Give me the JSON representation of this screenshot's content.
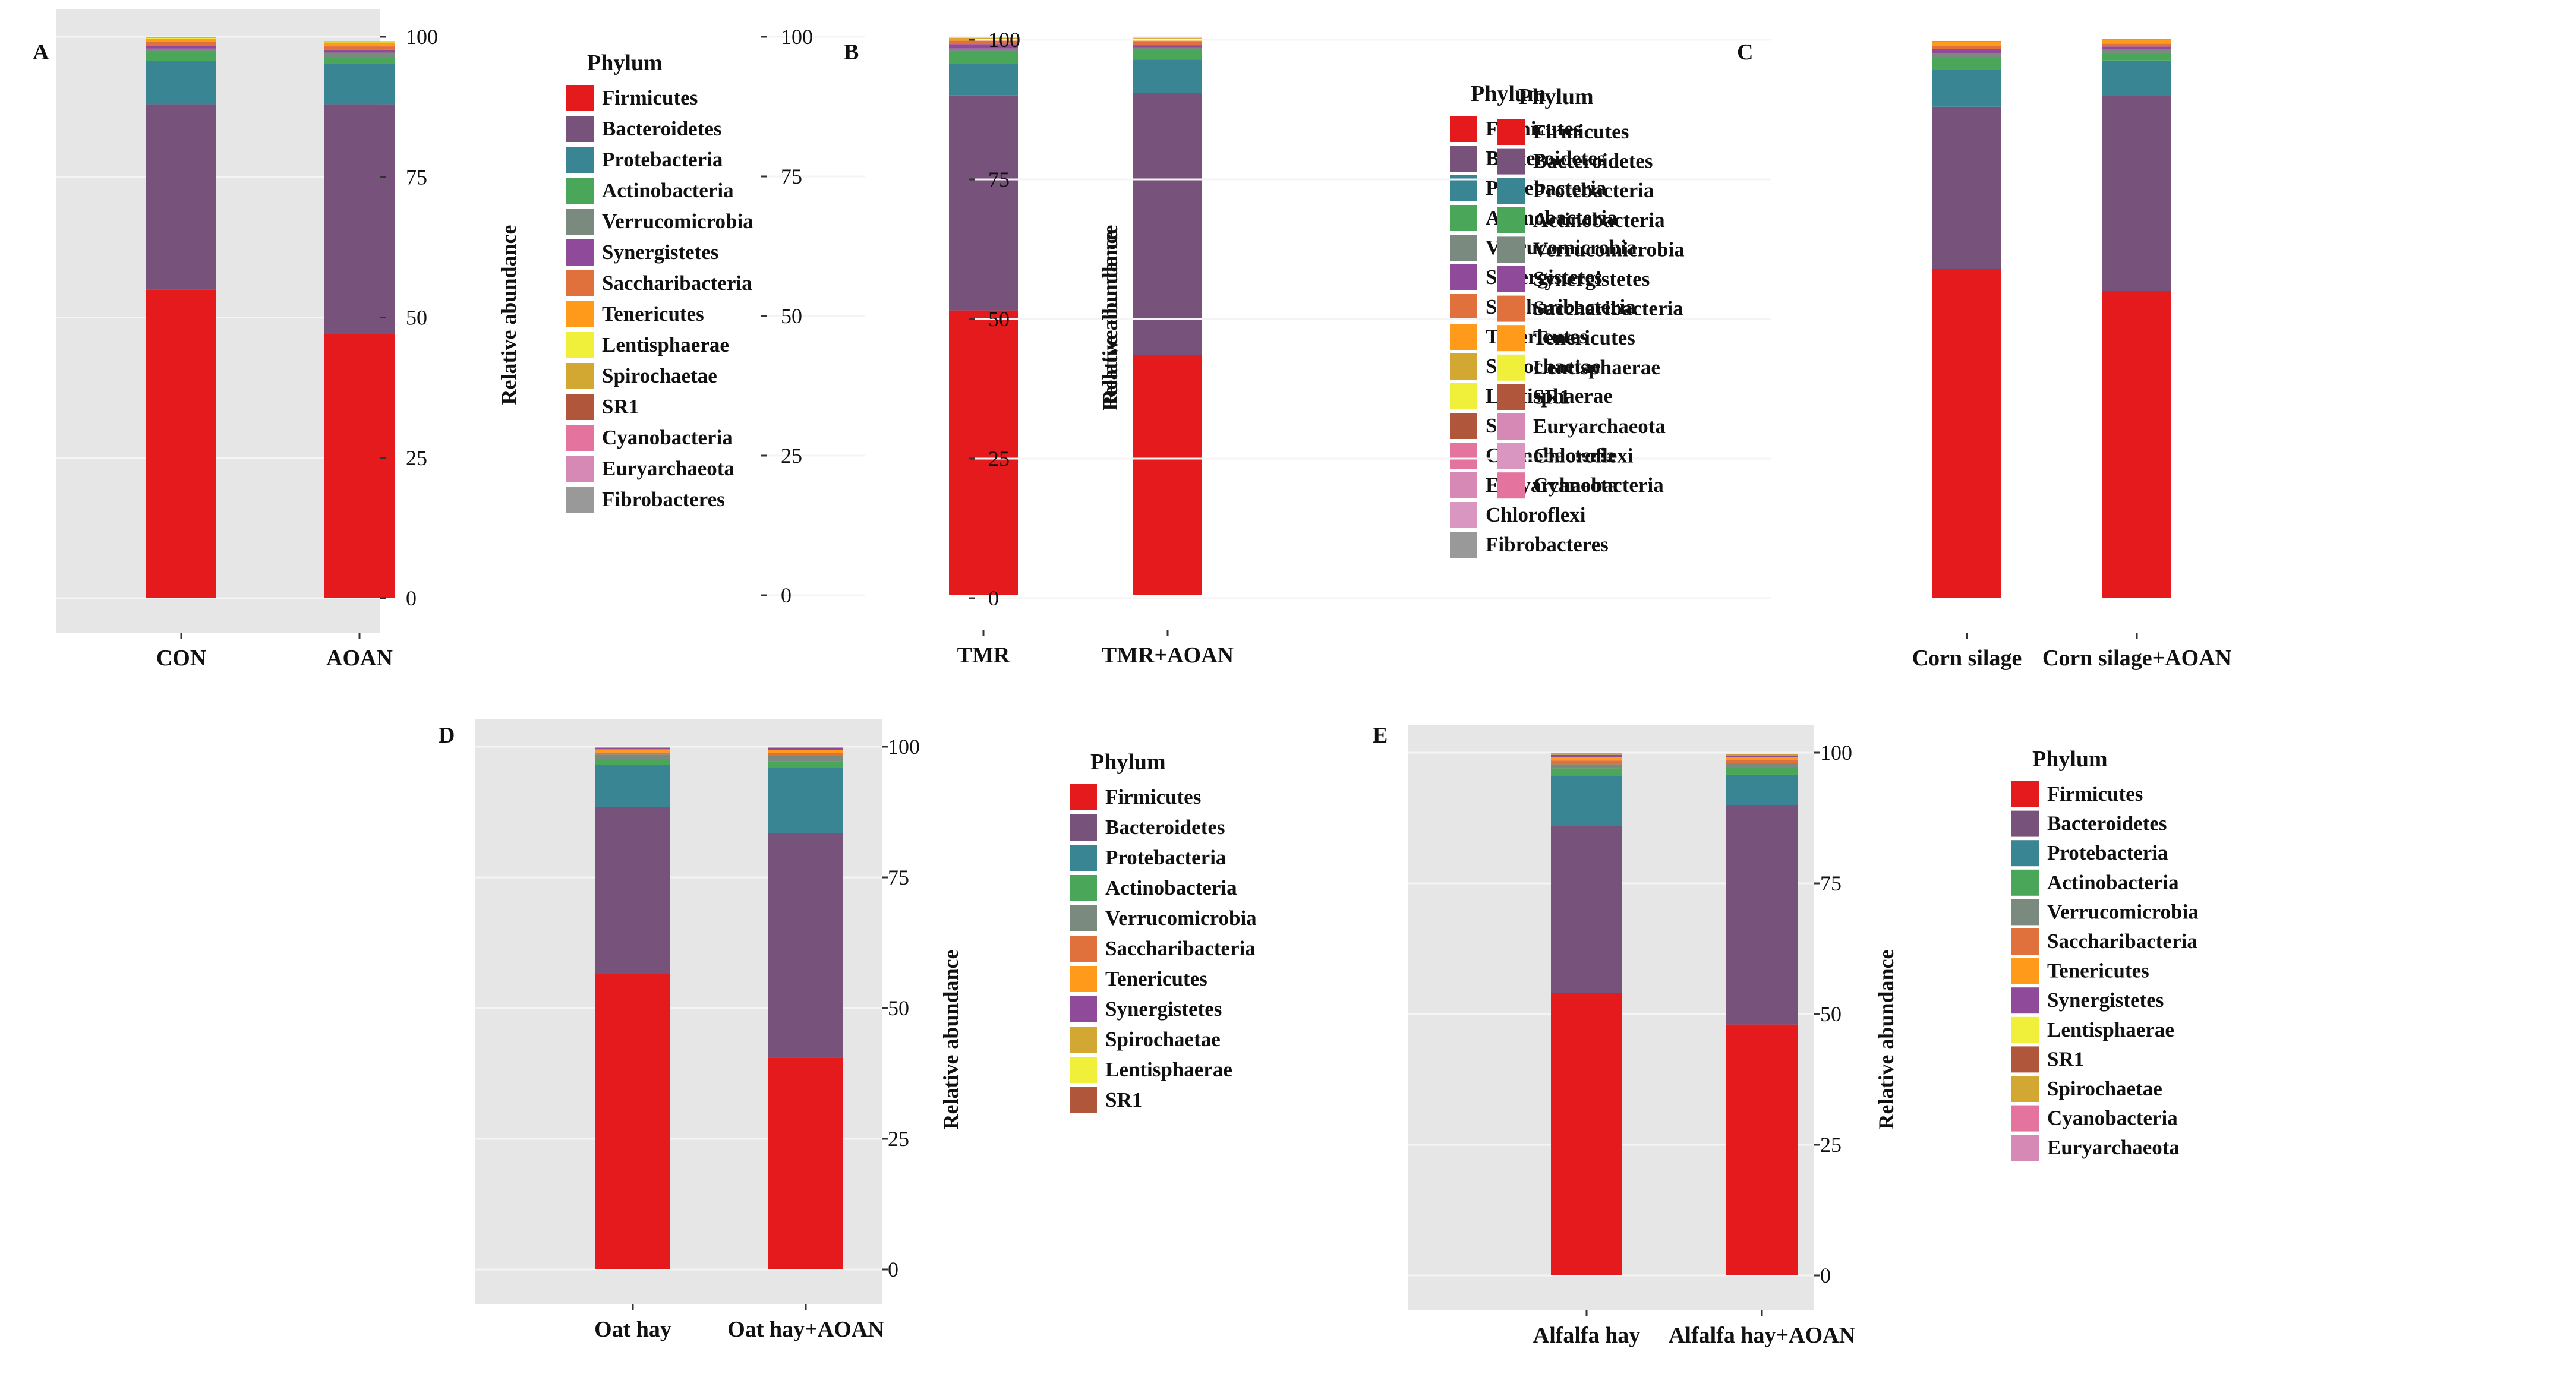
{
  "colors": {
    "Firmicutes": "#e41a1c",
    "Bacteroidetes": "#77527a",
    "Protebacteria": "#3a8594",
    "Actinobacteria": "#4aa658",
    "Verrucomicrobia": "#7a8a7e",
    "Synergistetes": "#8f4a9a",
    "Saccharibacteria": "#e0703c",
    "Tenericutes": "#ff9a1a",
    "Lentisphaerae": "#f0ef3a",
    "Spirochaetae": "#d2a832",
    "SR1": "#b0563a",
    "Cyanobacteria": "#e4739e",
    "Euryarchaeota": "#d689b4",
    "Fibrobacteres": "#999999",
    "Chloroflexi": "#d996c0"
  },
  "chart_data": [
    {
      "type": "bar",
      "stacked": true,
      "panel": "A",
      "categories": [
        "CON",
        "AOAN"
      ],
      "ylabel": "Relative abundance",
      "ylim": [
        0,
        100
      ],
      "yticks": [
        "0",
        "25",
        "50",
        "75",
        "100"
      ],
      "legend_title": "Phylum",
      "legend": [
        "Firmicutes",
        "Bacteroidetes",
        "Protebacteria",
        "Actinobacteria",
        "Verrucomicrobia",
        "Synergistetes",
        "Saccharibacteria",
        "Tenericutes",
        "Lentisphaerae",
        "Spirochaetae",
        "SR1",
        "Cyanobacteria",
        "Euryarchaeota",
        "Fibrobacteres"
      ],
      "series": [
        {
          "name": "Firmicutes",
          "values": [
            55,
            47
          ]
        },
        {
          "name": "Bacteroidetes",
          "values": [
            33,
            41
          ]
        },
        {
          "name": "Protebacteria",
          "values": [
            7.7,
            7.2
          ]
        },
        {
          "name": "Actinobacteria",
          "values": [
            1.6,
            1.2
          ]
        },
        {
          "name": "Verrucomicrobia",
          "values": [
            0.6,
            0.8
          ]
        },
        {
          "name": "Synergistetes",
          "values": [
            0.5,
            0.5
          ]
        },
        {
          "name": "Saccharibacteria",
          "values": [
            0.7,
            0.6
          ]
        },
        {
          "name": "Tenericutes",
          "values": [
            0.6,
            0.6
          ]
        },
        {
          "name": "Lentisphaerae",
          "values": [
            0.1,
            0.1
          ]
        },
        {
          "name": "Spirochaetae",
          "values": [
            0.1,
            0.1
          ]
        },
        {
          "name": "SR1",
          "values": [
            0.05,
            0.05
          ]
        },
        {
          "name": "Cyanobacteria",
          "values": [
            0.02,
            0.02
          ]
        },
        {
          "name": "Euryarchaeota",
          "values": [
            0.02,
            0.02
          ]
        },
        {
          "name": "Fibrobacteres",
          "values": [
            0.01,
            0.01
          ]
        }
      ]
    },
    {
      "type": "bar",
      "stacked": true,
      "panel": "B",
      "categories": [
        "TMR",
        "TMR+AOAN"
      ],
      "ylabel": "Relative abundance",
      "ylim": [
        0,
        100
      ],
      "yticks": [
        "0",
        "25",
        "50",
        "75",
        "100"
      ],
      "legend_title": "Phylum",
      "legend": [
        "Firmicutes",
        "Bacteroidetes",
        "Protebacteria",
        "Actinobacteria",
        "Verrucomicrobia",
        "Synergistetes",
        "Saccharibacteria",
        "Tenericutes",
        "Spirochaetae",
        "Lentisphaerae",
        "SR1",
        "Cyanobacteria",
        "Euryarchaeota",
        "Chloroflexi",
        "Fibrobacteres"
      ],
      "series": [
        {
          "name": "Firmicutes",
          "values": [
            51,
            43
          ]
        },
        {
          "name": "Bacteroidetes",
          "values": [
            38.5,
            47
          ]
        },
        {
          "name": "Protebacteria",
          "values": [
            5.8,
            5.9
          ]
        },
        {
          "name": "Actinobacteria",
          "values": [
            2.0,
            1.7
          ]
        },
        {
          "name": "Verrucomicrobia",
          "values": [
            0.6,
            0.5
          ]
        },
        {
          "name": "Synergistetes",
          "values": [
            0.8,
            0.4
          ]
        },
        {
          "name": "Saccharibacteria",
          "values": [
            0.6,
            0.7
          ]
        },
        {
          "name": "Tenericutes",
          "values": [
            0.3,
            0.5
          ]
        },
        {
          "name": "Spirochaetae",
          "values": [
            0.2,
            0.1
          ]
        },
        {
          "name": "Lentisphaerae",
          "values": [
            0.1,
            0.1
          ]
        },
        {
          "name": "SR1",
          "values": [
            0.05,
            0.05
          ]
        },
        {
          "name": "Cyanobacteria",
          "values": [
            0.02,
            0.02
          ]
        },
        {
          "name": "Euryarchaeota",
          "values": [
            0.02,
            0.02
          ]
        },
        {
          "name": "Chloroflexi",
          "values": [
            0.01,
            0.01
          ]
        },
        {
          "name": "Fibrobacteres",
          "values": [
            0.01,
            0.01
          ]
        }
      ]
    },
    {
      "type": "bar",
      "stacked": true,
      "panel": "C",
      "categories": [
        "Corn silage",
        "Corn silage+AOAN"
      ],
      "ylabel": "Relative abundance",
      "ylim": [
        0,
        100
      ],
      "yticks": [
        "0",
        "25",
        "50",
        "75",
        "100"
      ],
      "legend_title": "Phylum",
      "legend": [
        "Firmicutes",
        "Bacteroidetes",
        "Protebacteria",
        "Actinobacteria",
        "Verrucomicrobia",
        "Synergistetes",
        "Saccharibacteria",
        "Tenericutes",
        "Lentisphaerae",
        "SR1",
        "Euryarchaeota",
        "Chloroflexi",
        "Cyanobacteria"
      ],
      "series": [
        {
          "name": "Firmicutes",
          "values": [
            59,
            55
          ]
        },
        {
          "name": "Bacteroidetes",
          "values": [
            29,
            35
          ]
        },
        {
          "name": "Protebacteria",
          "values": [
            6.6,
            6.3
          ]
        },
        {
          "name": "Actinobacteria",
          "values": [
            2.1,
            1.2
          ]
        },
        {
          "name": "Verrucomicrobia",
          "values": [
            0.9,
            0.8
          ]
        },
        {
          "name": "Synergistetes",
          "values": [
            0.7,
            0.5
          ]
        },
        {
          "name": "Saccharibacteria",
          "values": [
            0.6,
            0.5
          ]
        },
        {
          "name": "Tenericutes",
          "values": [
            0.7,
            0.6
          ]
        },
        {
          "name": "Lentisphaerae",
          "values": [
            0.1,
            0.1
          ]
        },
        {
          "name": "SR1",
          "values": [
            0.05,
            0.05
          ]
        },
        {
          "name": "Euryarchaeota",
          "values": [
            0.02,
            0.02
          ]
        },
        {
          "name": "Chloroflexi",
          "values": [
            0.01,
            0.01
          ]
        },
        {
          "name": "Cyanobacteria",
          "values": [
            0.01,
            0.01
          ]
        }
      ]
    },
    {
      "type": "bar",
      "stacked": true,
      "panel": "D",
      "categories": [
        "Oat hay",
        "Oat hay+AOAN"
      ],
      "ylabel": "Relative abundance",
      "ylim": [
        0,
        100
      ],
      "yticks": [
        "0",
        "25",
        "50",
        "75",
        "100"
      ],
      "legend_title": "Phylum",
      "legend": [
        "Firmicutes",
        "Bacteroidetes",
        "Protebacteria",
        "Actinobacteria",
        "Verrucomicrobia",
        "Saccharibacteria",
        "Tenericutes",
        "Synergistetes",
        "Spirochaetae",
        "Lentisphaerae",
        "SR1"
      ],
      "series": [
        {
          "name": "Firmicutes",
          "values": [
            56.5,
            40.5
          ]
        },
        {
          "name": "Bacteroidetes",
          "values": [
            32,
            43
          ]
        },
        {
          "name": "Protebacteria",
          "values": [
            8,
            12.5
          ]
        },
        {
          "name": "Actinobacteria",
          "values": [
            1.2,
            1.2
          ]
        },
        {
          "name": "Verrucomicrobia",
          "values": [
            0.8,
            1.0
          ]
        },
        {
          "name": "Saccharibacteria",
          "values": [
            0.4,
            0.6
          ]
        },
        {
          "name": "Tenericutes",
          "values": [
            0.6,
            0.6
          ]
        },
        {
          "name": "Synergistetes",
          "values": [
            0.3,
            0.4
          ]
        },
        {
          "name": "Spirochaetae",
          "values": [
            0.1,
            0.1
          ]
        },
        {
          "name": "Lentisphaerae",
          "values": [
            0.05,
            0.05
          ]
        },
        {
          "name": "SR1",
          "values": [
            0.05,
            0.05
          ]
        }
      ]
    },
    {
      "type": "bar",
      "stacked": true,
      "panel": "E",
      "categories": [
        "Alfalfa hay",
        "Alfalfa hay+AOAN"
      ],
      "ylabel": "Relative abundance",
      "ylim": [
        0,
        100
      ],
      "yticks": [
        "0",
        "25",
        "50",
        "75",
        "100"
      ],
      "legend_title": "Phylum",
      "legend": [
        "Firmicutes",
        "Bacteroidetes",
        "Protebacteria",
        "Actinobacteria",
        "Verrucomicrobia",
        "Saccharibacteria",
        "Tenericutes",
        "Synergistetes",
        "Lentisphaerae",
        "SR1",
        "Spirochaetae",
        "Cyanobacteria",
        "Euryarchaeota"
      ],
      "series": [
        {
          "name": "Firmicutes",
          "values": [
            54,
            48
          ]
        },
        {
          "name": "Bacteroidetes",
          "values": [
            32,
            42
          ]
        },
        {
          "name": "Protebacteria",
          "values": [
            9.5,
            5.8
          ]
        },
        {
          "name": "Actinobacteria",
          "values": [
            1.5,
            1.3
          ]
        },
        {
          "name": "Verrucomicrobia",
          "values": [
            0.8,
            0.9
          ]
        },
        {
          "name": "Saccharibacteria",
          "values": [
            0.7,
            0.6
          ]
        },
        {
          "name": "Tenericutes",
          "values": [
            0.7,
            0.6
          ]
        },
        {
          "name": "Synergistetes",
          "values": [
            0.4,
            0.3
          ]
        },
        {
          "name": "Lentisphaerae",
          "values": [
            0.1,
            0.1
          ]
        },
        {
          "name": "SR1",
          "values": [
            0.1,
            0.1
          ]
        },
        {
          "name": "Spirochaetae",
          "values": [
            0.05,
            0.05
          ]
        },
        {
          "name": "Cyanobacteria",
          "values": [
            0.02,
            0.02
          ]
        },
        {
          "name": "Euryarchaeota",
          "values": [
            0.01,
            0.01
          ]
        }
      ]
    }
  ]
}
